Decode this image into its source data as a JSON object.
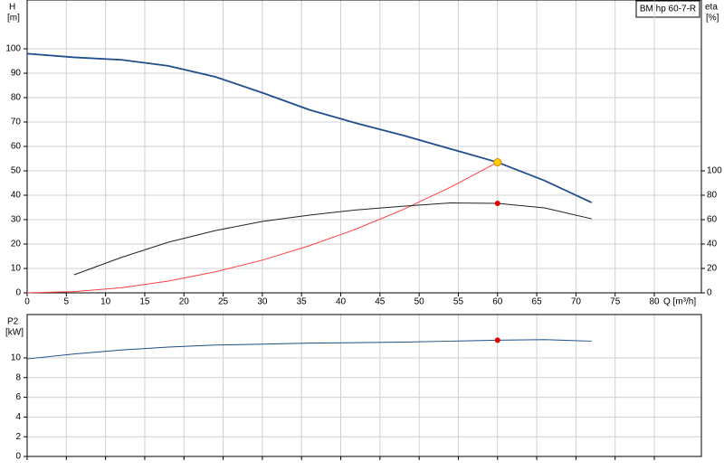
{
  "chart_data": [
    {
      "type": "line",
      "title": "BM hp 60-7-R",
      "y_label": "H",
      "y_unit": "[m]",
      "y2_label": "eta",
      "y2_unit": "[%]",
      "x_label": "Q [m³/h]",
      "x": [
        0,
        6,
        12,
        18,
        24,
        30,
        36,
        42,
        48,
        54,
        60,
        66,
        72
      ],
      "xlim": [
        0,
        86
      ],
      "xticks": [
        0,
        5,
        10,
        15,
        20,
        25,
        30,
        35,
        40,
        45,
        50,
        55,
        60,
        65,
        70,
        75,
        80
      ],
      "ylim": [
        0,
        120
      ],
      "yticks": [
        0,
        10,
        20,
        30,
        40,
        50,
        60,
        70,
        80,
        90,
        100
      ],
      "y2lim": [
        0,
        240
      ],
      "y2ticks": [
        0,
        20,
        40,
        60,
        80,
        100
      ],
      "grid": true,
      "series": [
        {
          "color": "#1f4e8c",
          "values": [
            98,
            96.5,
            95.5,
            93,
            88.5,
            82,
            75,
            69.5,
            64.5,
            59,
            53.5,
            46,
            37
          ]
        },
        {
          "color": "#ff4040",
          "values": [
            0,
            0.5,
            2.1,
            4.8,
            8.6,
            13.4,
            19.3,
            26.2,
            34.2,
            43.3,
            53.5,
            null,
            null
          ]
        },
        {
          "color": "#222222",
          "axis": "y2",
          "values": [
            null,
            14.8,
            29,
            41.5,
            51,
            58.5,
            63.7,
            68,
            71,
            73.7,
            73.3,
            69.6,
            60.7
          ]
        }
      ],
      "points": [
        {
          "x": 60,
          "y": 53.5,
          "color": "#ffd000"
        },
        {
          "x": 60,
          "y": 73.3,
          "color": "#e00000",
          "axis": "y2"
        }
      ]
    },
    {
      "type": "line",
      "y_label": "P2",
      "y_unit": "[kW]",
      "x": [
        0,
        6,
        12,
        18,
        24,
        30,
        36,
        42,
        48,
        54,
        60,
        66,
        72
      ],
      "xlim": [
        0,
        86
      ],
      "xticks": [
        0,
        5,
        10,
        15,
        20,
        25,
        30,
        35,
        40,
        45,
        50,
        55,
        60,
        65,
        70,
        75,
        80
      ],
      "ylim": [
        0,
        14.4
      ],
      "yticks": [
        0,
        2,
        4,
        6,
        8,
        10
      ],
      "grid": true,
      "series": [
        {
          "color": "#1f4e8c",
          "values": [
            9.9,
            10.4,
            10.8,
            11.1,
            11.3,
            11.4,
            11.5,
            11.55,
            11.6,
            11.7,
            11.8,
            11.85,
            11.7
          ]
        }
      ],
      "points": [
        {
          "x": 60,
          "y": 11.8,
          "color": "#e00000"
        }
      ]
    }
  ]
}
